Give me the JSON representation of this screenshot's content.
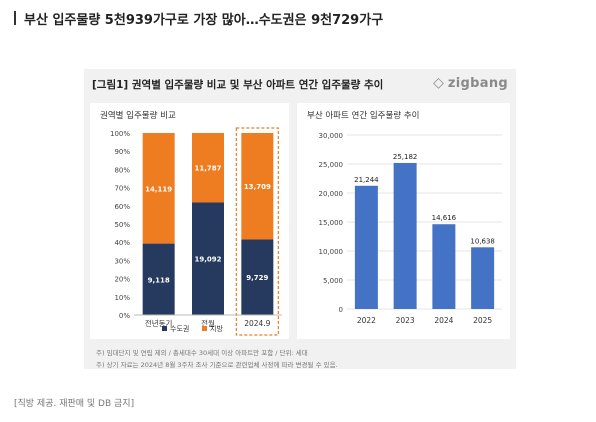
{
  "headline": "부산 입주물량 5천939가구로 가장 많아…수도권은 9천729가구",
  "figure": {
    "title": "[그림1] 권역별 입주물량 비교 및 부산 아파트 연간 입주물량 추이",
    "logo_text": "zigbang",
    "notes": [
      "주) 임대단지 및 연립 제외 / 총세대수 30세대 이상 아파트만 포함 / 단위: 세대",
      "주) 상기 자료는 2024년 8월 3주차 조사 기준으로 관련업체 사정에 따라 변경될 수 있음."
    ]
  },
  "credit": "[직방 제공. 재판매 및 DB 금지]",
  "colors": {
    "capital": "#253a5e",
    "local": "#ee7d22",
    "busan": "#4472c4",
    "highlight_border": "#ee7d22"
  },
  "chart_data": [
    {
      "type": "bar",
      "stacked": "percent",
      "title": "권역별 입주물량 비교",
      "categories": [
        "전년동기",
        "전월",
        "2024.9"
      ],
      "series": [
        {
          "name": "수도권",
          "values": [
            9118,
            19092,
            9729
          ]
        },
        {
          "name": "지방",
          "values": [
            14119,
            11787,
            13709
          ]
        }
      ],
      "yticks": [
        "0%",
        "10%",
        "20%",
        "30%",
        "40%",
        "50%",
        "60%",
        "70%",
        "80%",
        "90%",
        "100%"
      ],
      "ylim": [
        0,
        100
      ],
      "highlight_category": "2024.9",
      "legend_position": "bottom",
      "grid": false
    },
    {
      "type": "bar",
      "title": "부산 아파트 연간 입주물량 추이",
      "categories": [
        "2022",
        "2023",
        "2024",
        "2025"
      ],
      "values": [
        21244,
        25182,
        14616,
        10638
      ],
      "value_labels": [
        "21,244",
        "25,182",
        "14,616",
        "10,638"
      ],
      "yticks": [
        "0",
        "5,000",
        "10,000",
        "15,000",
        "20,000",
        "25,000",
        "30,000"
      ],
      "ylim": [
        0,
        30000
      ],
      "grid": true
    }
  ]
}
